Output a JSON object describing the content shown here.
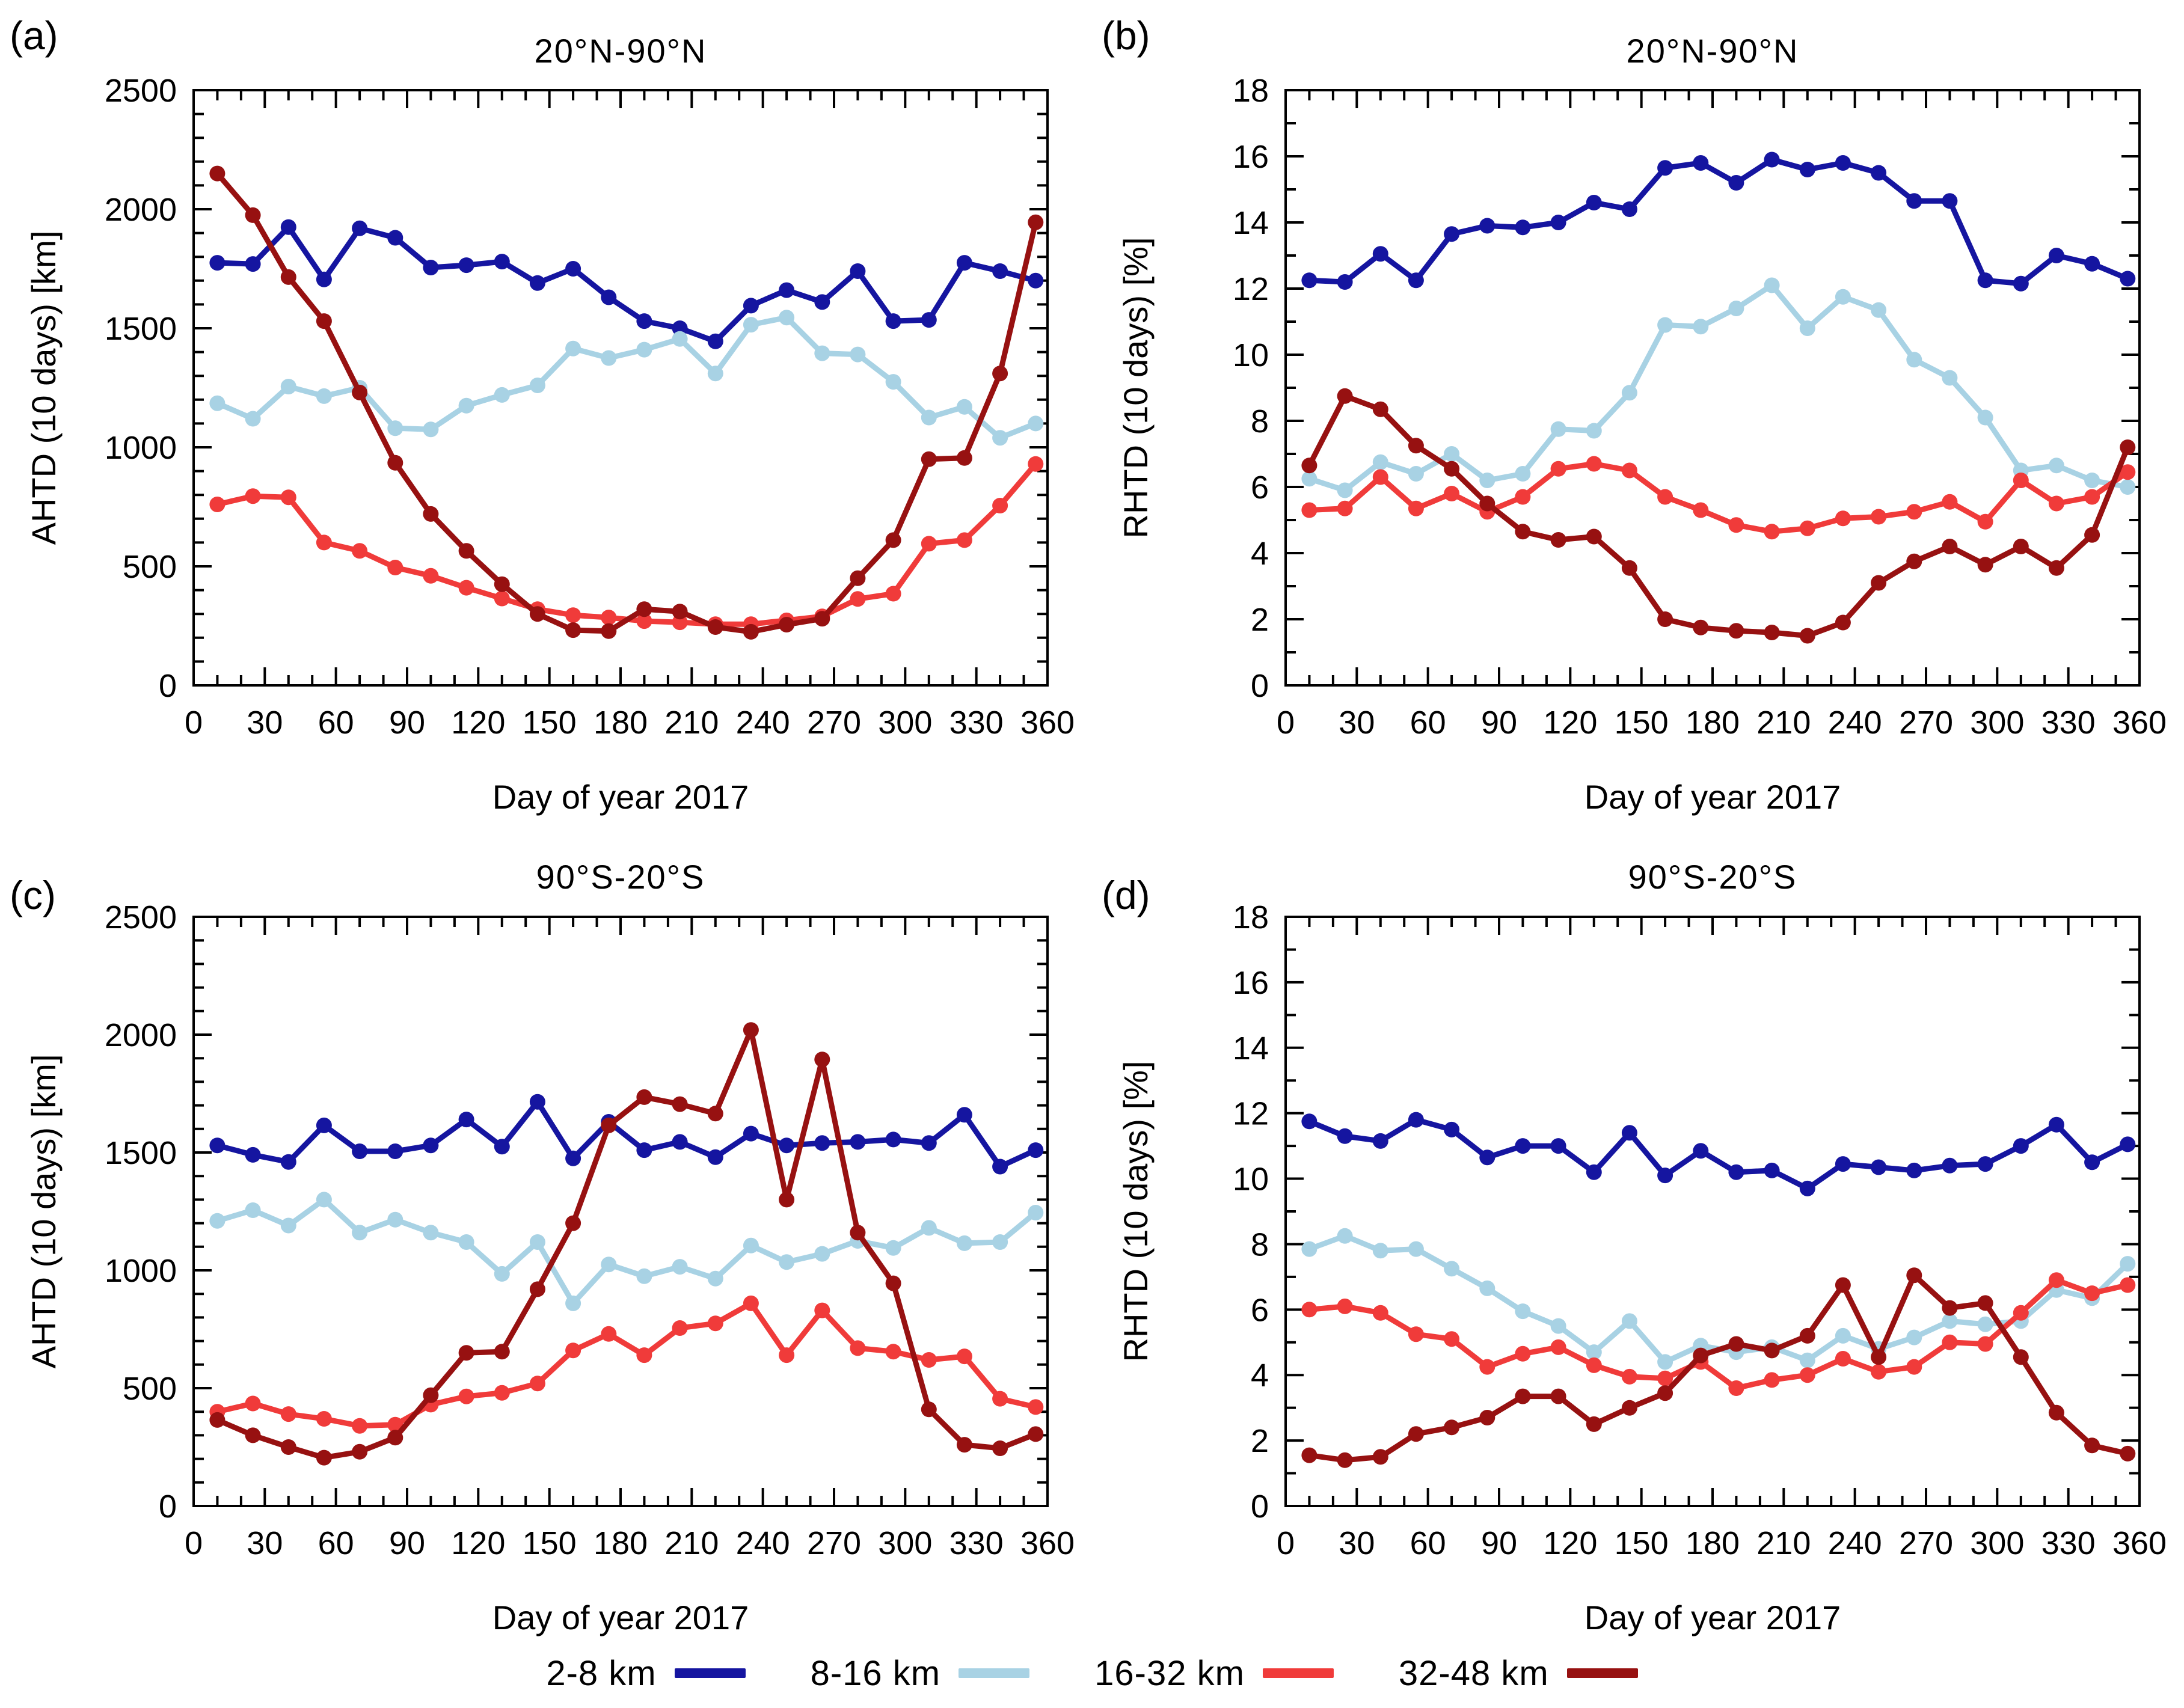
{
  "figure": {
    "background": "#ffffff",
    "text_color": "#000000",
    "xlabel": "Day of year 2017",
    "legend_title": "",
    "legend": [
      {
        "label": "2-8 km",
        "color": "#1515a0"
      },
      {
        "label": "8-16 km",
        "color": "#a8d2e4"
      },
      {
        "label": "16-32 km",
        "color": "#f03b3a"
      },
      {
        "label": "32-48 km",
        "color": "#971111"
      }
    ]
  },
  "chart_data": [
    {
      "id": "a",
      "panel_label": "(a)",
      "type": "line",
      "title": "20°N-90°N",
      "xlabel": "Day of year 2017",
      "ylabel": "AHTD (10 days) [km]",
      "xlim": [
        0,
        360
      ],
      "ylim": [
        0,
        2500
      ],
      "x_major": 30,
      "x_minor": 10,
      "y_major": 500,
      "y_minor": 100,
      "grid": false,
      "legend_position": "none",
      "x": [
        10,
        25,
        40,
        55,
        70,
        85,
        100,
        115,
        130,
        145,
        160,
        175,
        190,
        205,
        220,
        235,
        250,
        265,
        280,
        295,
        310,
        325,
        340,
        355
      ],
      "series": [
        {
          "name": "2-8 km",
          "color": "#1515a0",
          "values": [
            1775,
            1770,
            1925,
            1705,
            1920,
            1880,
            1755,
            1765,
            1780,
            1690,
            1750,
            1630,
            1530,
            1500,
            1445,
            1595,
            1660,
            1610,
            1740,
            1530,
            1535,
            1775,
            1740,
            1700
          ]
        },
        {
          "name": "8-16 km",
          "color": "#a8d2e4",
          "values": [
            1185,
            1120,
            1255,
            1215,
            1250,
            1080,
            1075,
            1175,
            1220,
            1260,
            1415,
            1375,
            1410,
            1455,
            1310,
            1515,
            1545,
            1395,
            1390,
            1275,
            1125,
            1170,
            1040,
            1100
          ]
        },
        {
          "name": "16-32 km",
          "color": "#f03b3a",
          "values": [
            760,
            795,
            790,
            600,
            565,
            495,
            460,
            410,
            365,
            320,
            295,
            285,
            270,
            265,
            257,
            257,
            273,
            290,
            363,
            385,
            595,
            610,
            755,
            930
          ]
        },
        {
          "name": "32-48 km",
          "color": "#971111",
          "values": [
            2150,
            1975,
            1715,
            1530,
            1230,
            935,
            720,
            565,
            425,
            300,
            232,
            228,
            320,
            310,
            245,
            225,
            255,
            280,
            450,
            610,
            950,
            955,
            1310,
            1945
          ]
        }
      ]
    },
    {
      "id": "b",
      "panel_label": "(b)",
      "type": "line",
      "title": "20°N-90°N",
      "xlabel": "Day of year 2017",
      "ylabel": "RHTD (10 days) [%]",
      "xlim": [
        0,
        360
      ],
      "ylim": [
        0,
        18
      ],
      "x_major": 30,
      "x_minor": 10,
      "y_major": 2,
      "y_minor": 1,
      "grid": false,
      "legend_position": "none",
      "x": [
        10,
        25,
        40,
        55,
        70,
        85,
        100,
        115,
        130,
        145,
        160,
        175,
        190,
        205,
        220,
        235,
        250,
        265,
        280,
        295,
        310,
        325,
        340,
        355
      ],
      "series": [
        {
          "name": "2-8 km",
          "color": "#1515a0",
          "values": [
            12.25,
            12.2,
            13.05,
            12.25,
            13.65,
            13.9,
            13.85,
            14.0,
            14.6,
            14.4,
            15.65,
            15.8,
            15.2,
            15.9,
            15.6,
            15.8,
            15.5,
            14.65,
            14.65,
            12.25,
            12.15,
            13.0,
            12.75,
            12.3
          ]
        },
        {
          "name": "8-16 km",
          "color": "#a8d2e4",
          "values": [
            6.25,
            5.9,
            6.75,
            6.4,
            7.0,
            6.2,
            6.4,
            7.75,
            7.7,
            8.85,
            10.9,
            10.85,
            11.4,
            12.1,
            10.8,
            11.75,
            11.35,
            9.85,
            9.3,
            8.1,
            6.5,
            6.65,
            6.2,
            6.0
          ]
        },
        {
          "name": "16-32 km",
          "color": "#f03b3a",
          "values": [
            5.3,
            5.35,
            6.3,
            5.35,
            5.8,
            5.25,
            5.7,
            6.55,
            6.7,
            6.5,
            5.7,
            5.3,
            4.85,
            4.65,
            4.75,
            5.05,
            5.1,
            5.25,
            5.55,
            4.95,
            6.2,
            5.5,
            5.7,
            6.45
          ]
        },
        {
          "name": "32-48 km",
          "color": "#971111",
          "values": [
            6.65,
            8.75,
            8.35,
            7.25,
            6.55,
            5.5,
            4.65,
            4.4,
            4.5,
            3.55,
            2.0,
            1.75,
            1.65,
            1.6,
            1.5,
            1.9,
            3.1,
            3.75,
            4.2,
            3.65,
            4.2,
            3.55,
            4.55,
            7.2
          ]
        }
      ]
    },
    {
      "id": "c",
      "panel_label": "(c)",
      "type": "line",
      "title": "90°S-20°S",
      "xlabel": "Day of year 2017",
      "ylabel": "AHTD (10 days) [km]",
      "xlim": [
        0,
        360
      ],
      "ylim": [
        0,
        2500
      ],
      "x_major": 30,
      "x_minor": 10,
      "y_major": 500,
      "y_minor": 100,
      "grid": false,
      "legend_position": "none",
      "x": [
        10,
        25,
        40,
        55,
        70,
        85,
        100,
        115,
        130,
        145,
        160,
        175,
        190,
        205,
        220,
        235,
        250,
        265,
        280,
        295,
        310,
        325,
        340,
        355
      ],
      "series": [
        {
          "name": "2-8 km",
          "color": "#1515a0",
          "values": [
            1530,
            1490,
            1460,
            1615,
            1505,
            1505,
            1530,
            1640,
            1525,
            1715,
            1475,
            1630,
            1510,
            1545,
            1480,
            1580,
            1530,
            1540,
            1545,
            1555,
            1540,
            1660,
            1440,
            1510
          ]
        },
        {
          "name": "8-16 km",
          "color": "#a8d2e4",
          "values": [
            1210,
            1255,
            1190,
            1300,
            1160,
            1215,
            1160,
            1120,
            985,
            1120,
            860,
            1025,
            975,
            1015,
            965,
            1105,
            1035,
            1070,
            1125,
            1095,
            1180,
            1115,
            1120,
            1245
          ]
        },
        {
          "name": "16-32 km",
          "color": "#f03b3a",
          "values": [
            400,
            435,
            390,
            370,
            340,
            345,
            430,
            465,
            480,
            520,
            660,
            730,
            640,
            755,
            775,
            860,
            640,
            830,
            670,
            655,
            620,
            635,
            455,
            420
          ]
        },
        {
          "name": "32-48 km",
          "color": "#971111",
          "values": [
            365,
            300,
            250,
            205,
            230,
            290,
            470,
            650,
            655,
            920,
            1200,
            1615,
            1735,
            1705,
            1665,
            2020,
            1300,
            1895,
            1160,
            945,
            410,
            260,
            245,
            305
          ]
        }
      ]
    },
    {
      "id": "d",
      "panel_label": "(d)",
      "type": "line",
      "title": "90°S-20°S",
      "xlabel": "Day of year 2017",
      "ylabel": "RHTD (10 days) [%]",
      "xlim": [
        0,
        360
      ],
      "ylim": [
        0,
        18
      ],
      "x_major": 30,
      "x_minor": 10,
      "y_major": 2,
      "y_minor": 1,
      "grid": false,
      "legend_position": "none",
      "x": [
        10,
        25,
        40,
        55,
        70,
        85,
        100,
        115,
        130,
        145,
        160,
        175,
        190,
        205,
        220,
        235,
        250,
        265,
        280,
        295,
        310,
        325,
        340,
        355
      ],
      "series": [
        {
          "name": "2-8 km",
          "color": "#1515a0",
          "values": [
            11.75,
            11.3,
            11.15,
            11.8,
            11.5,
            10.65,
            11.0,
            11.0,
            10.2,
            11.4,
            10.1,
            10.85,
            10.2,
            10.25,
            9.7,
            10.45,
            10.35,
            10.25,
            10.4,
            10.45,
            11.0,
            11.65,
            10.5,
            11.05
          ]
        },
        {
          "name": "8-16 km",
          "color": "#a8d2e4",
          "values": [
            7.85,
            8.25,
            7.8,
            7.85,
            7.25,
            6.65,
            5.95,
            5.5,
            4.7,
            5.65,
            4.4,
            4.9,
            4.7,
            4.85,
            4.45,
            5.2,
            4.8,
            5.15,
            5.65,
            5.55,
            5.65,
            6.6,
            6.35,
            7.4
          ]
        },
        {
          "name": "16-32 km",
          "color": "#f03b3a",
          "values": [
            6.0,
            6.1,
            5.9,
            5.25,
            5.1,
            4.25,
            4.65,
            4.85,
            4.3,
            3.95,
            3.9,
            4.4,
            3.6,
            3.85,
            4.0,
            4.5,
            4.1,
            4.25,
            5.0,
            4.95,
            5.9,
            6.9,
            6.5,
            6.75
          ]
        },
        {
          "name": "32-48 km",
          "color": "#971111",
          "values": [
            1.55,
            1.4,
            1.5,
            2.2,
            2.4,
            2.7,
            3.35,
            3.35,
            2.5,
            3.0,
            3.45,
            4.6,
            4.95,
            4.75,
            5.2,
            6.75,
            4.55,
            7.05,
            6.05,
            6.2,
            4.55,
            2.85,
            1.85,
            1.6
          ]
        }
      ]
    }
  ]
}
